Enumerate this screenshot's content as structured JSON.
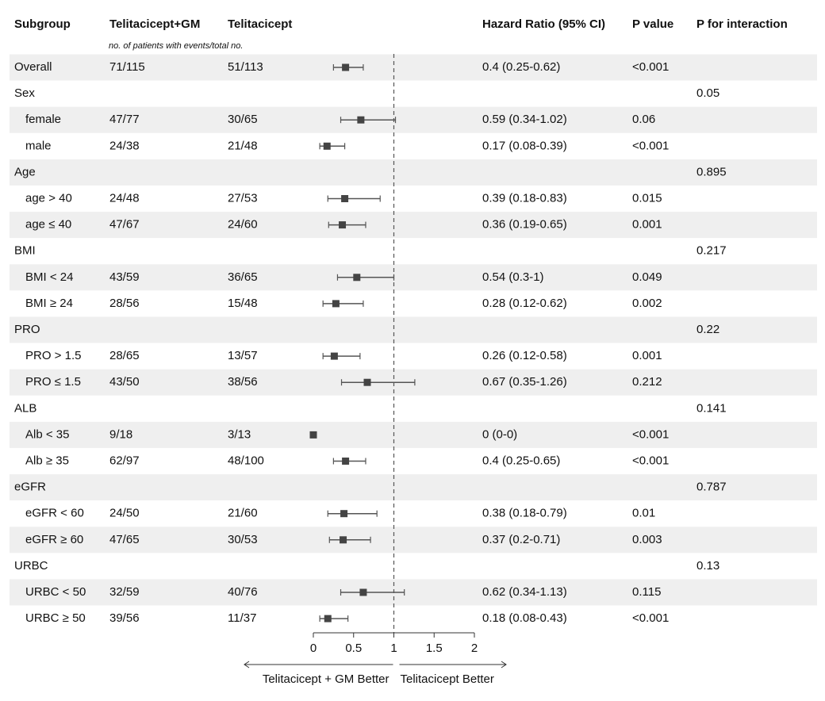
{
  "chart_data": {
    "type": "forest",
    "headers": {
      "subgroup": "Subgroup",
      "group1": "Telitacicept+GM",
      "group2": "Telitacicept",
      "hr": "Hazard Ratio (95% CI)",
      "p": "P value",
      "p_interaction": "P for interaction"
    },
    "note": "no. of patients with events/total no.",
    "xlim": [
      0,
      2
    ],
    "xticks": [
      0,
      0.5,
      1,
      1.5,
      2
    ],
    "ref_line": 1,
    "left_label": "Telitacicept + GM Better",
    "right_label": "Telitacicept Better",
    "color": "#444444",
    "overall": {
      "name": "Overall",
      "n1": "71/115",
      "n2": "51/113",
      "hr": 0.4,
      "lo": 0.25,
      "hi": 0.62,
      "ci_label": "0.4 (0.25-0.62)",
      "p": "<0.001"
    },
    "groups": [
      {
        "name": "Sex",
        "p_interaction": 0.05,
        "rows": [
          {
            "name": "female",
            "n1": "47/77",
            "n2": "30/65",
            "hr": 0.59,
            "lo": 0.34,
            "hi": 1.02,
            "ci_label": "0.59 (0.34-1.02)",
            "p": "0.06"
          },
          {
            "name": "male",
            "n1": "24/38",
            "n2": "21/48",
            "hr": 0.17,
            "lo": 0.08,
            "hi": 0.39,
            "ci_label": "0.17 (0.08-0.39)",
            "p": "<0.001"
          }
        ]
      },
      {
        "name": "Age",
        "p_interaction": 0.895,
        "rows": [
          {
            "name": "age > 40",
            "n1": "24/48",
            "n2": "27/53",
            "hr": 0.39,
            "lo": 0.18,
            "hi": 0.83,
            "ci_label": "0.39 (0.18-0.83)",
            "p": "0.015"
          },
          {
            "name": "age ≤ 40",
            "n1": "47/67",
            "n2": "24/60",
            "hr": 0.36,
            "lo": 0.19,
            "hi": 0.65,
            "ci_label": "0.36 (0.19-0.65)",
            "p": "0.001"
          }
        ]
      },
      {
        "name": "BMI",
        "p_interaction": 0.217,
        "rows": [
          {
            "name": "BMI < 24",
            "n1": "43/59",
            "n2": "36/65",
            "hr": 0.54,
            "lo": 0.3,
            "hi": 1,
            "ci_label": "0.54 (0.3-1)",
            "p": "0.049"
          },
          {
            "name": "BMI ≥ 24",
            "n1": "28/56",
            "n2": "15/48",
            "hr": 0.28,
            "lo": 0.12,
            "hi": 0.62,
            "ci_label": "0.28 (0.12-0.62)",
            "p": "0.002"
          }
        ]
      },
      {
        "name": "PRO",
        "p_interaction": 0.22,
        "rows": [
          {
            "name": "PRO > 1.5",
            "n1": "28/65",
            "n2": "13/57",
            "hr": 0.26,
            "lo": 0.12,
            "hi": 0.58,
            "ci_label": "0.26 (0.12-0.58)",
            "p": "0.001"
          },
          {
            "name": "PRO ≤ 1.5",
            "n1": "43/50",
            "n2": "38/56",
            "hr": 0.67,
            "lo": 0.35,
            "hi": 1.26,
            "ci_label": "0.67 (0.35-1.26)",
            "p": "0.212"
          }
        ]
      },
      {
        "name": "ALB",
        "p_interaction": 0.141,
        "rows": [
          {
            "name": "Alb < 35",
            "n1": "9/18",
            "n2": "3/13",
            "hr": 0,
            "lo": 0,
            "hi": 0,
            "ci_label": "0 (0-0)",
            "p": "<0.001"
          },
          {
            "name": "Alb ≥ 35",
            "n1": "62/97",
            "n2": "48/100",
            "hr": 0.4,
            "lo": 0.25,
            "hi": 0.65,
            "ci_label": "0.4 (0.25-0.65)",
            "p": "<0.001"
          }
        ]
      },
      {
        "name": "eGFR",
        "p_interaction": 0.787,
        "rows": [
          {
            "name": "eGFR < 60",
            "n1": "24/50",
            "n2": "21/60",
            "hr": 0.38,
            "lo": 0.18,
            "hi": 0.79,
            "ci_label": "0.38 (0.18-0.79)",
            "p": "0.01"
          },
          {
            "name": "eGFR ≥ 60",
            "n1": "47/65",
            "n2": "30/53",
            "hr": 0.37,
            "lo": 0.2,
            "hi": 0.71,
            "ci_label": "0.37 (0.2-0.71)",
            "p": "0.003"
          }
        ]
      },
      {
        "name": "URBC",
        "p_interaction": 0.13,
        "rows": [
          {
            "name": "URBC < 50",
            "n1": "32/59",
            "n2": "40/76",
            "hr": 0.62,
            "lo": 0.34,
            "hi": 1.13,
            "ci_label": "0.62 (0.34-1.13)",
            "p": "0.115"
          },
          {
            "name": "URBC ≥ 50",
            "n1": "39/56",
            "n2": "11/37",
            "hr": 0.18,
            "lo": 0.08,
            "hi": 0.43,
            "ci_label": "0.18 (0.08-0.43)",
            "p": "<0.001"
          }
        ]
      }
    ]
  }
}
